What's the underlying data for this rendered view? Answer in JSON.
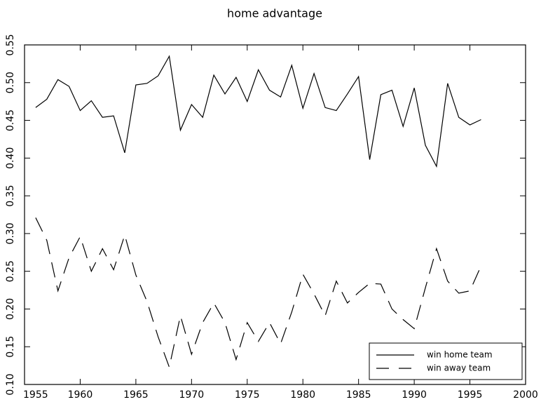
{
  "chart_data": {
    "type": "line",
    "title": "home advantage",
    "x": [
      1956,
      1957,
      1958,
      1959,
      1960,
      1961,
      1962,
      1963,
      1964,
      1965,
      1966,
      1967,
      1968,
      1969,
      1970,
      1971,
      1972,
      1973,
      1974,
      1975,
      1976,
      1977,
      1978,
      1979,
      1980,
      1981,
      1982,
      1983,
      1984,
      1985,
      1986,
      1987,
      1988,
      1989,
      1990,
      1991,
      1992,
      1993,
      1994,
      1995,
      1996
    ],
    "series": [
      {
        "name": "win home team",
        "color": "#000000",
        "linestyle": "solid",
        "values": [
          0.467,
          0.478,
          0.504,
          0.495,
          0.463,
          0.476,
          0.454,
          0.456,
          0.407,
          0.497,
          0.499,
          0.509,
          0.535,
          0.437,
          0.471,
          0.454,
          0.51,
          0.485,
          0.507,
          0.475,
          0.517,
          0.49,
          0.481,
          0.523,
          0.466,
          0.512,
          0.467,
          0.463,
          0.485,
          0.508,
          0.398,
          0.484,
          0.49,
          0.442,
          0.493,
          0.417,
          0.389,
          0.499,
          0.454,
          0.444,
          0.451
        ]
      },
      {
        "name": "win away team",
        "color": "#000000",
        "linestyle": "dashed",
        "values": [
          0.321,
          0.291,
          0.224,
          0.268,
          0.296,
          0.25,
          0.28,
          0.252,
          0.298,
          0.245,
          0.21,
          0.163,
          0.123,
          0.191,
          0.14,
          0.182,
          0.208,
          0.182,
          0.133,
          0.182,
          0.157,
          0.182,
          0.154,
          0.196,
          0.246,
          0.22,
          0.191,
          0.237,
          0.208,
          0.222,
          0.234,
          0.233,
          0.2,
          0.186,
          0.174,
          0.228,
          0.28,
          0.237,
          0.221,
          0.224,
          0.257
        ]
      }
    ],
    "xlim": [
      1955,
      2000
    ],
    "xticks": [
      1955,
      1960,
      1965,
      1970,
      1975,
      1980,
      1985,
      1990,
      1995,
      2000
    ],
    "ylim": [
      0.1,
      0.55
    ],
    "yticks": [
      {
        "value": 0.1,
        "label": "0.10"
      },
      0.15,
      {
        "value": 0.2,
        "label": "0.20"
      },
      0.25,
      {
        "value": 0.3,
        "label": "0.30"
      },
      0.35,
      {
        "value": 0.4,
        "label": "0.40"
      },
      0.45,
      {
        "value": 0.5,
        "label": "0.50"
      },
      0.55
    ],
    "grid": false,
    "legend": "lower right"
  }
}
